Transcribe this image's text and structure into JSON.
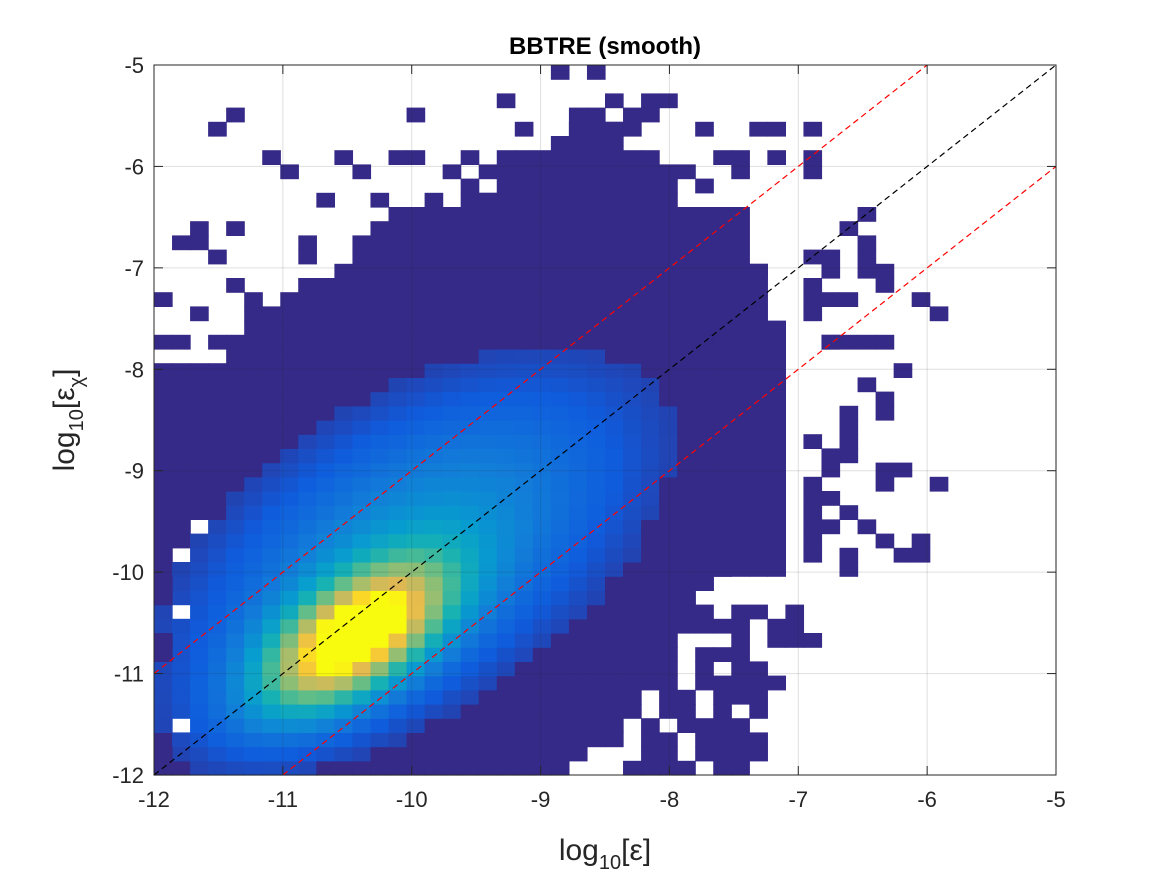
{
  "chart_data": {
    "type": "heatmap",
    "title": "BBTRE (smooth)",
    "xlabel": {
      "base": "log",
      "subscript": "10",
      "argument": "[ε]"
    },
    "ylabel": {
      "base": "log",
      "subscript": "10",
      "argument": "[ε",
      "argument_subscript": "χ",
      "argument_close": "]"
    },
    "xlim": [
      -12,
      -5
    ],
    "ylim": [
      -12,
      -5
    ],
    "xticks": [
      -12,
      -11,
      -10,
      -9,
      -8,
      -7,
      -6,
      -5
    ],
    "yticks": [
      -5,
      -6,
      -7,
      -8,
      -9,
      -10,
      -11,
      -12
    ],
    "xtick_labels": [
      "-12",
      "-11",
      "-10",
      "-9",
      "-8",
      "-7",
      "-6",
      "-5"
    ],
    "ytick_labels": [
      "-5",
      "-6",
      "-7",
      "-8",
      "-9",
      "-10",
      "-11",
      "-12"
    ],
    "grid": true,
    "bin_width": 0.14,
    "colormap": "parula",
    "density_peak": {
      "x": -10.45,
      "y": -10.65
    },
    "reference_lines": [
      {
        "kind": "one-to-one",
        "color": "#000000",
        "style": "dashed",
        "points": [
          [
            -12,
            -12
          ],
          [
            -5,
            -5
          ]
        ]
      },
      {
        "kind": "upper-bound",
        "color": "#ff0000",
        "style": "dashed",
        "points": [
          [
            -12,
            -11
          ],
          [
            -6,
            -5
          ]
        ]
      },
      {
        "kind": "lower-bound",
        "color": "#ff0000",
        "style": "dashed",
        "points": [
          [
            -11,
            -12
          ],
          [
            -5,
            -6
          ]
        ]
      }
    ],
    "isolated_bins": [
      [
        -8.83,
        -5.07
      ],
      [
        -8.55,
        -5.07
      ],
      [
        -9.25,
        -5.35
      ],
      [
        -8.13,
        -5.35
      ],
      [
        -8.41,
        -5.35
      ],
      [
        -7.99,
        -5.35
      ],
      [
        -11.35,
        -5.49
      ],
      [
        -9.95,
        -5.49
      ],
      [
        -8.55,
        -5.49
      ],
      [
        -8.69,
        -5.49
      ],
      [
        -8.27,
        -5.49
      ],
      [
        -8.13,
        -5.49
      ],
      [
        -11.49,
        -5.63
      ],
      [
        -9.11,
        -5.63
      ],
      [
        -8.69,
        -5.63
      ],
      [
        -8.41,
        -5.63
      ],
      [
        -8.27,
        -5.63
      ],
      [
        -7.71,
        -5.63
      ],
      [
        -7.29,
        -5.63
      ],
      [
        -7.15,
        -5.63
      ],
      [
        -6.87,
        -5.63
      ],
      [
        -11.07,
        -5.91
      ],
      [
        -10.51,
        -5.91
      ],
      [
        -10.09,
        -5.91
      ],
      [
        -9.95,
        -5.91
      ],
      [
        -9.53,
        -5.91
      ],
      [
        -7.57,
        -5.91
      ],
      [
        -7.43,
        -5.91
      ],
      [
        -7.15,
        -5.91
      ],
      [
        -6.87,
        -5.91
      ],
      [
        -10.93,
        -6.05
      ],
      [
        -10.37,
        -6.05
      ],
      [
        -9.67,
        -6.05
      ],
      [
        -7.85,
        -6.05
      ],
      [
        -6.87,
        -6.05
      ],
      [
        -7.43,
        -6.05
      ],
      [
        -7.71,
        -6.19
      ],
      [
        -10.65,
        -6.33
      ],
      [
        -10.23,
        -6.33
      ],
      [
        -9.81,
        -6.33
      ],
      [
        -9.39,
        -6.33
      ],
      [
        -11.63,
        -6.61
      ],
      [
        -11.35,
        -6.61
      ],
      [
        -6.45,
        -6.47
      ],
      [
        -6.59,
        -6.61
      ],
      [
        -11.77,
        -6.75
      ],
      [
        -11.63,
        -6.75
      ],
      [
        -10.79,
        -6.75
      ],
      [
        -10.37,
        -6.75
      ],
      [
        -6.45,
        -6.75
      ],
      [
        -11.49,
        -6.89
      ],
      [
        -10.79,
        -6.89
      ],
      [
        -10.23,
        -6.89
      ],
      [
        -6.87,
        -6.89
      ],
      [
        -6.73,
        -6.89
      ],
      [
        -6.45,
        -6.89
      ],
      [
        -7.71,
        -6.75
      ],
      [
        -7.71,
        -6.89
      ],
      [
        -7.29,
        -7.03
      ],
      [
        -6.73,
        -7.03
      ],
      [
        -6.45,
        -7.03
      ],
      [
        -6.87,
        -7.17
      ],
      [
        -11.35,
        -7.17
      ],
      [
        -10.79,
        -7.17
      ],
      [
        -6.31,
        -7.03
      ],
      [
        -6.31,
        -7.17
      ],
      [
        -11.91,
        -7.31
      ],
      [
        -11.21,
        -7.31
      ],
      [
        -7.71,
        -7.31
      ],
      [
        -6.87,
        -7.31
      ],
      [
        -6.73,
        -7.31
      ],
      [
        -6.59,
        -7.31
      ],
      [
        -6.03,
        -7.31
      ],
      [
        -6.87,
        -7.45
      ],
      [
        -5.89,
        -7.52
      ],
      [
        -11.91,
        -7.66
      ],
      [
        -11.63,
        -7.52
      ],
      [
        -6.73,
        -7.66
      ],
      [
        -6.59,
        -7.66
      ],
      [
        -11.77,
        -7.8
      ],
      [
        -11.49,
        -7.8
      ],
      [
        -6.45,
        -7.8
      ],
      [
        -6.31,
        -7.8
      ],
      [
        -6.73,
        -7.8
      ],
      [
        -6.17,
        -7.94
      ],
      [
        -11.07,
        -8.1
      ],
      [
        -6.45,
        -8.1
      ],
      [
        -6.31,
        -8.24
      ],
      [
        -11.63,
        -8.38
      ],
      [
        -6.31,
        -8.38
      ],
      [
        -6.59,
        -8.38
      ],
      [
        -6.59,
        -8.52
      ],
      [
        -6.59,
        -8.66
      ],
      [
        -6.87,
        -8.66
      ],
      [
        -6.59,
        -8.8
      ],
      [
        -6.73,
        -8.8
      ],
      [
        -6.73,
        -8.94
      ],
      [
        -6.31,
        -8.94
      ],
      [
        -6.17,
        -8.94
      ],
      [
        -6.87,
        -9.08
      ],
      [
        -6.31,
        -9.08
      ],
      [
        -5.89,
        -9.08
      ],
      [
        -6.87,
        -9.22
      ],
      [
        -6.73,
        -9.22
      ],
      [
        -7.43,
        -9.36
      ],
      [
        -7.15,
        -9.36
      ],
      [
        -6.87,
        -9.36
      ],
      [
        -6.59,
        -9.36
      ],
      [
        -7.29,
        -9.5
      ],
      [
        -6.87,
        -9.5
      ],
      [
        -6.73,
        -9.5
      ],
      [
        -6.45,
        -9.5
      ],
      [
        -7.57,
        -9.64
      ],
      [
        -7.15,
        -9.64
      ],
      [
        -6.87,
        -9.64
      ],
      [
        -6.31,
        -9.64
      ],
      [
        -7.57,
        -9.78
      ],
      [
        -7.29,
        -9.78
      ],
      [
        -6.87,
        -9.78
      ],
      [
        -6.59,
        -9.78
      ],
      [
        -6.17,
        -9.78
      ],
      [
        -6.03,
        -9.64
      ],
      [
        -6.03,
        -9.78
      ],
      [
        -6.59,
        -9.92
      ],
      [
        -7.57,
        -9.92
      ],
      [
        -7.85,
        -10.06
      ],
      [
        -7.71,
        -10.06
      ],
      [
        -7.85,
        -10.2
      ],
      [
        -7.71,
        -10.34
      ],
      [
        -7.43,
        -10.34
      ],
      [
        -7.29,
        -10.34
      ],
      [
        -7.01,
        -10.34
      ],
      [
        -7.71,
        -10.48
      ],
      [
        -7.57,
        -10.48
      ],
      [
        -7.43,
        -10.48
      ],
      [
        -7.01,
        -10.48
      ],
      [
        -7.15,
        -10.48
      ],
      [
        -7.43,
        -10.62
      ],
      [
        -7.15,
        -10.62
      ],
      [
        -7.01,
        -10.62
      ],
      [
        -6.87,
        -10.62
      ],
      [
        -7.71,
        -10.76
      ],
      [
        -7.57,
        -10.76
      ],
      [
        -7.43,
        -10.76
      ],
      [
        -7.99,
        -10.9
      ],
      [
        -7.71,
        -10.9
      ],
      [
        -7.43,
        -10.9
      ],
      [
        -7.29,
        -10.9
      ],
      [
        -7.99,
        -11.04
      ],
      [
        -7.71,
        -11.04
      ],
      [
        -7.57,
        -11.04
      ],
      [
        -7.43,
        -11.04
      ],
      [
        -7.29,
        -11.04
      ],
      [
        -7.15,
        -11.04
      ],
      [
        -7.99,
        -11.18
      ],
      [
        -7.85,
        -11.18
      ],
      [
        -7.57,
        -11.18
      ],
      [
        -7.43,
        -11.18
      ],
      [
        -7.29,
        -11.18
      ],
      [
        -7.99,
        -11.32
      ],
      [
        -7.85,
        -11.32
      ],
      [
        -7.57,
        -11.32
      ],
      [
        -7.29,
        -11.32
      ],
      [
        -8.13,
        -11.46
      ],
      [
        -7.85,
        -11.46
      ],
      [
        -7.71,
        -11.46
      ],
      [
        -7.57,
        -11.46
      ],
      [
        -7.43,
        -11.46
      ],
      [
        -8.13,
        -11.6
      ],
      [
        -7.99,
        -11.6
      ],
      [
        -7.71,
        -11.6
      ],
      [
        -7.57,
        -11.6
      ],
      [
        -7.43,
        -11.6
      ],
      [
        -7.29,
        -11.6
      ],
      [
        -8.13,
        -11.74
      ],
      [
        -7.99,
        -11.74
      ],
      [
        -7.71,
        -11.74
      ],
      [
        -7.57,
        -11.74
      ],
      [
        -7.43,
        -11.74
      ],
      [
        -7.29,
        -11.74
      ],
      [
        -8.27,
        -11.88
      ],
      [
        -8.13,
        -11.88
      ],
      [
        -7.99,
        -11.88
      ],
      [
        -7.85,
        -11.88
      ],
      [
        -7.57,
        -11.88
      ],
      [
        -7.43,
        -11.88
      ],
      [
        -11.91,
        -9.5
      ],
      [
        -11.91,
        -9.64
      ],
      [
        -11.91,
        -9.78
      ],
      [
        -11.77,
        -9.5
      ],
      [
        -11.91,
        -10.06
      ],
      [
        -11.91,
        -10.2
      ],
      [
        -11.91,
        -10.62
      ],
      [
        -11.91,
        -10.76
      ],
      [
        -11.91,
        -11.74
      ]
    ],
    "holes": [
      [
        -11.77,
        -9.64
      ],
      [
        -11.91,
        -9.92
      ],
      [
        -11.91,
        -10.48
      ],
      [
        -11.91,
        -11.6
      ],
      [
        -8.27,
        -11.74
      ],
      [
        -7.99,
        -11.46
      ],
      [
        -7.71,
        -11.18
      ],
      [
        -7.85,
        -11.04
      ],
      [
        -7.57,
        -10.9
      ],
      [
        -7.29,
        -10.76
      ],
      [
        -7.15,
        -10.76
      ],
      [
        -7.57,
        -10.62
      ],
      [
        -7.29,
        -10.48
      ],
      [
        -7.15,
        -10.34
      ],
      [
        -7.57,
        -10.34
      ],
      [
        -7.71,
        -10.2
      ],
      [
        -9.81,
        -6.05
      ],
      [
        -9.53,
        -6.19
      ],
      [
        -9.95,
        -6.19
      ],
      [
        -8.97,
        -5.77
      ],
      [
        -9.11,
        -5.77
      ]
    ]
  }
}
